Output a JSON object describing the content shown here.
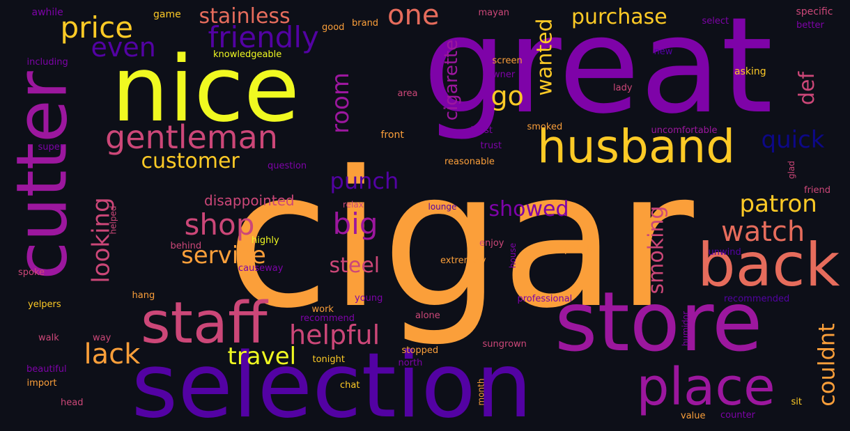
{
  "palette": {
    "background": "#0d0f18",
    "yellow": "#f0f921",
    "gold": "#fdca26",
    "orange": "#fb9f3a",
    "salmon": "#e66c5c",
    "pink": "#cc4778",
    "magenta": "#9c179e",
    "purple": "#7e03a8",
    "indigo": "#5302a3",
    "navy": "#0d0887"
  },
  "words": [
    {
      "text": "cigar",
      "color": "orange"
    },
    {
      "text": "great",
      "color": "purple"
    },
    {
      "text": "nice",
      "color": "yellow"
    },
    {
      "text": "selection",
      "color": "indigo"
    },
    {
      "text": "store",
      "color": "magenta"
    },
    {
      "text": "cutter",
      "color": "magenta"
    },
    {
      "text": "staff",
      "color": "pink"
    },
    {
      "text": "back",
      "color": "salmon"
    },
    {
      "text": "husband",
      "color": "gold"
    },
    {
      "text": "place",
      "color": "magenta"
    },
    {
      "text": "gentleman",
      "color": "pink"
    },
    {
      "text": "price",
      "color": "gold"
    },
    {
      "text": "friendly",
      "color": "indigo"
    },
    {
      "text": "even",
      "color": "indigo"
    },
    {
      "text": "one",
      "color": "salmon"
    },
    {
      "text": "stainless",
      "color": "salmon"
    },
    {
      "text": "purchase",
      "color": "gold"
    },
    {
      "text": "room",
      "color": "magenta"
    },
    {
      "text": "cigarette",
      "color": "magenta"
    },
    {
      "text": "wanted",
      "color": "gold"
    },
    {
      "text": "go",
      "color": "gold"
    },
    {
      "text": "def",
      "color": "pink"
    },
    {
      "text": "quick",
      "color": "navy"
    },
    {
      "text": "customer",
      "color": "gold"
    },
    {
      "text": "looking",
      "color": "pink"
    },
    {
      "text": "punch",
      "color": "indigo"
    },
    {
      "text": "shop",
      "color": "pink"
    },
    {
      "text": "big",
      "color": "magenta"
    },
    {
      "text": "showed",
      "color": "purple"
    },
    {
      "text": "smoking",
      "color": "pink"
    },
    {
      "text": "patron",
      "color": "gold"
    },
    {
      "text": "watch",
      "color": "salmon"
    },
    {
      "text": "service",
      "color": "orange"
    },
    {
      "text": "steel",
      "color": "pink"
    },
    {
      "text": "helpful",
      "color": "pink"
    },
    {
      "text": "lack",
      "color": "orange"
    },
    {
      "text": "travel",
      "color": "yellow"
    },
    {
      "text": "couldnt",
      "color": "orange"
    },
    {
      "text": "disappointed",
      "color": "pink"
    },
    {
      "text": "awhile",
      "color": "purple"
    },
    {
      "text": "game",
      "color": "gold"
    },
    {
      "text": "brand",
      "color": "orange"
    },
    {
      "text": "good",
      "color": "orange"
    },
    {
      "text": "mayan",
      "color": "pink"
    },
    {
      "text": "specific",
      "color": "pink"
    },
    {
      "text": "select",
      "color": "purple"
    },
    {
      "text": "better",
      "color": "purple"
    },
    {
      "text": "knowledgeable",
      "color": "yellow"
    },
    {
      "text": "including",
      "color": "purple"
    },
    {
      "text": "new",
      "color": "indigo"
    },
    {
      "text": "screen",
      "color": "orange"
    },
    {
      "text": "owner",
      "color": "purple"
    },
    {
      "text": "asking",
      "color": "gold"
    },
    {
      "text": "area",
      "color": "pink"
    },
    {
      "text": "lady",
      "color": "pink"
    },
    {
      "text": "smoked",
      "color": "orange"
    },
    {
      "text": "front",
      "color": "orange"
    },
    {
      "text": "least",
      "color": "purple"
    },
    {
      "text": "trust",
      "color": "purple"
    },
    {
      "text": "uncomfortable",
      "color": "magenta"
    },
    {
      "text": "super",
      "color": "purple"
    },
    {
      "text": "question",
      "color": "purple"
    },
    {
      "text": "reasonable",
      "color": "orange"
    },
    {
      "text": "glad",
      "color": "pink"
    },
    {
      "text": "friend",
      "color": "pink"
    },
    {
      "text": "relax",
      "color": "pink"
    },
    {
      "text": "lounge",
      "color": "indigo"
    },
    {
      "text": "helped",
      "color": "pink"
    },
    {
      "text": "behind",
      "color": "pink"
    },
    {
      "text": "highly",
      "color": "yellow"
    },
    {
      "text": "enjoy",
      "color": "pink"
    },
    {
      "text": "people",
      "color": "orange"
    },
    {
      "text": "unwind",
      "color": "indigo"
    },
    {
      "text": "causeway",
      "color": "purple"
    },
    {
      "text": "extremely",
      "color": "orange"
    },
    {
      "text": "house",
      "color": "purple"
    },
    {
      "text": "spoke",
      "color": "pink"
    },
    {
      "text": "hang",
      "color": "orange"
    },
    {
      "text": "young",
      "color": "purple"
    },
    {
      "text": "professional",
      "color": "purple"
    },
    {
      "text": "recommended",
      "color": "indigo"
    },
    {
      "text": "yelpers",
      "color": "gold"
    },
    {
      "text": "work",
      "color": "orange"
    },
    {
      "text": "recommend",
      "color": "purple"
    },
    {
      "text": "alone",
      "color": "pink"
    },
    {
      "text": "humidor",
      "color": "purple"
    },
    {
      "text": "walk",
      "color": "pink"
    },
    {
      "text": "way",
      "color": "pink"
    },
    {
      "text": "sungrown",
      "color": "pink"
    },
    {
      "text": "stopped",
      "color": "orange"
    },
    {
      "text": "beautiful",
      "color": "purple"
    },
    {
      "text": "tonight",
      "color": "gold"
    },
    {
      "text": "north",
      "color": "purple"
    },
    {
      "text": "import",
      "color": "orange"
    },
    {
      "text": "chat",
      "color": "gold"
    },
    {
      "text": "head",
      "color": "pink"
    },
    {
      "text": "month",
      "color": "orange"
    },
    {
      "text": "sit",
      "color": "gold"
    },
    {
      "text": "value",
      "color": "orange"
    },
    {
      "text": "counter",
      "color": "purple"
    }
  ]
}
